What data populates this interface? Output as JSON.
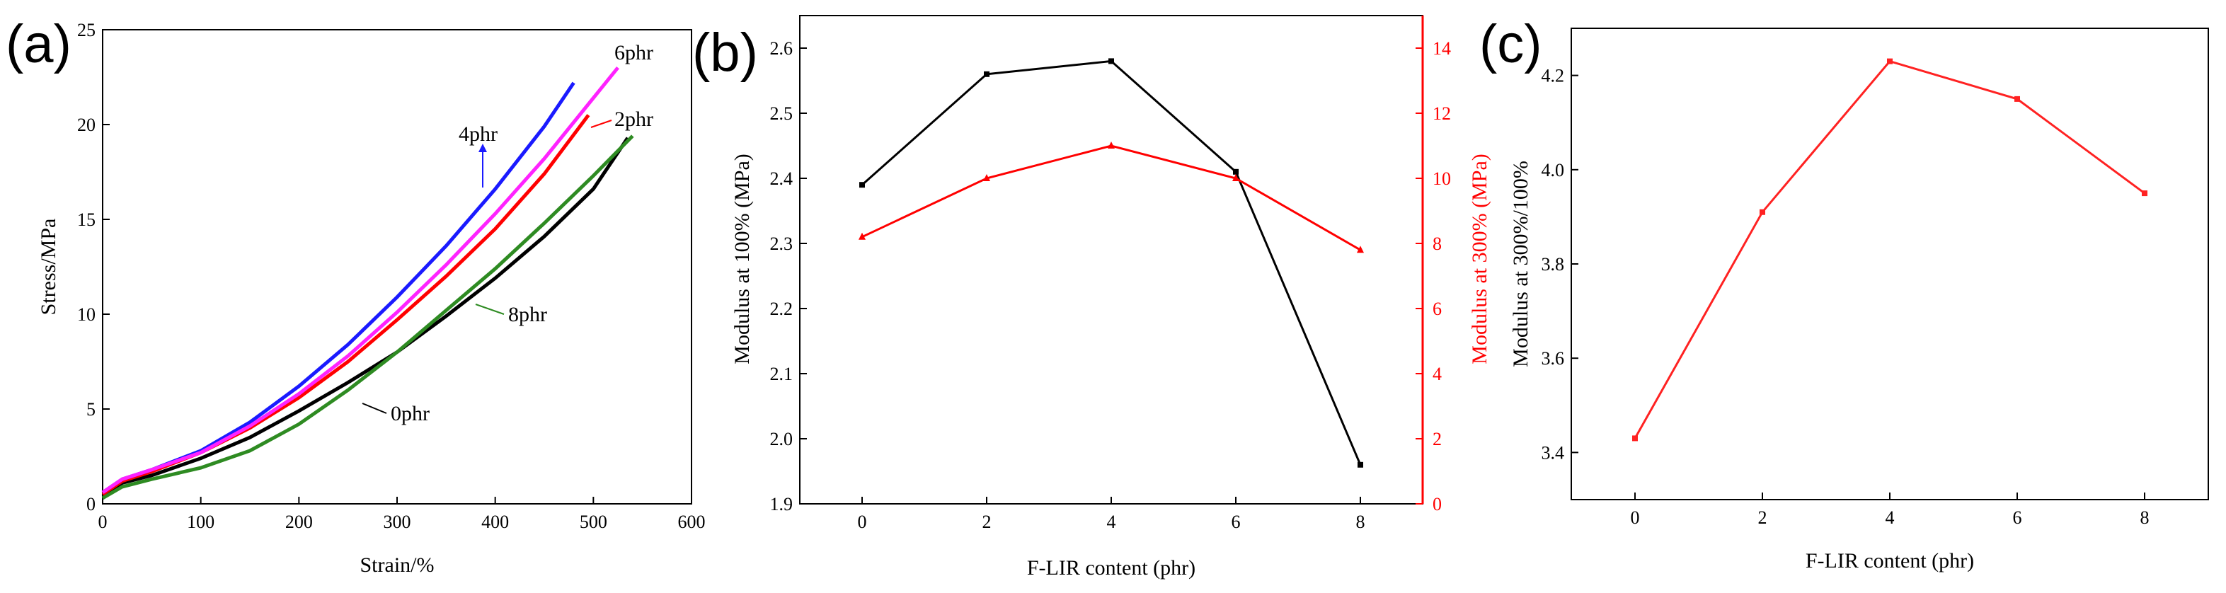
{
  "colors": {
    "black": "#000000",
    "red": "#ff0000",
    "green": "#2e8b22",
    "blue": "#1a1aff",
    "magenta": "#ff22ff",
    "red2": "#ff2222"
  },
  "chart_data": [
    {
      "panel": "(a)",
      "type": "line",
      "xlabel": "Strain/%",
      "ylabel": "Stress/MPa",
      "xlim": [
        0,
        600
      ],
      "ylim": [
        0,
        25
      ],
      "xticks": [
        "0",
        "100",
        "200",
        "300",
        "400",
        "500",
        "600"
      ],
      "yticks": [
        "0",
        "5",
        "10",
        "15",
        "20",
        "25"
      ],
      "series": [
        {
          "name": "0phr",
          "color": "black",
          "x": [
            0,
            20,
            50,
            100,
            150,
            200,
            250,
            300,
            350,
            400,
            450,
            500,
            535
          ],
          "y": [
            0.4,
            1.1,
            1.5,
            2.4,
            3.5,
            4.9,
            6.4,
            8.0,
            9.9,
            11.9,
            14.1,
            16.6,
            19.3
          ]
        },
        {
          "name": "2phr",
          "color": "red",
          "x": [
            0,
            20,
            50,
            100,
            150,
            200,
            250,
            300,
            350,
            400,
            450,
            495
          ],
          "y": [
            0.5,
            1.2,
            1.7,
            2.7,
            4.0,
            5.6,
            7.5,
            9.7,
            12.0,
            14.5,
            17.4,
            20.5
          ]
        },
        {
          "name": "4phr",
          "color": "blue",
          "x": [
            0,
            20,
            50,
            100,
            150,
            200,
            250,
            300,
            350,
            400,
            450,
            480
          ],
          "y": [
            0.6,
            1.3,
            1.8,
            2.8,
            4.3,
            6.2,
            8.4,
            10.9,
            13.6,
            16.6,
            19.9,
            22.2
          ]
        },
        {
          "name": "6phr",
          "color": "magenta",
          "x": [
            0,
            20,
            50,
            100,
            150,
            200,
            250,
            300,
            350,
            400,
            450,
            500,
            525
          ],
          "y": [
            0.6,
            1.3,
            1.8,
            2.7,
            4.1,
            5.8,
            7.8,
            10.1,
            12.6,
            15.3,
            18.2,
            21.4,
            23.0
          ]
        },
        {
          "name": "8phr",
          "color": "green",
          "x": [
            0,
            20,
            50,
            100,
            150,
            200,
            250,
            300,
            350,
            400,
            450,
            500,
            540
          ],
          "y": [
            0.3,
            0.9,
            1.3,
            1.9,
            2.8,
            4.2,
            6.0,
            8.0,
            10.2,
            12.4,
            14.8,
            17.3,
            19.4
          ]
        }
      ],
      "annotations": [
        "4phr",
        "6phr",
        "2phr",
        "8phr",
        "0phr"
      ]
    },
    {
      "panel": "(b)",
      "type": "line",
      "xlabel": "F-LIR content (phr)",
      "ylabel": "Modulus at 100% (MPa)",
      "ylabel_right": "Modulus at 300% (MPa)",
      "xlim": [
        -1,
        9
      ],
      "ylim": [
        1.9,
        2.65
      ],
      "ylim_right": [
        0,
        15
      ],
      "xticks": [
        "0",
        "2",
        "4",
        "6",
        "8"
      ],
      "yticks": [
        "1.9",
        "2.0",
        "2.1",
        "2.2",
        "2.3",
        "2.4",
        "2.5",
        "2.6"
      ],
      "yticks_right": [
        "0",
        "2",
        "4",
        "6",
        "8",
        "10",
        "12",
        "14"
      ],
      "series": [
        {
          "name": "",
          "axis": "left",
          "color": "black",
          "x": [
            0,
            2,
            4,
            6,
            8
          ],
          "y": [
            2.39,
            2.56,
            2.58,
            2.41,
            1.96
          ]
        },
        {
          "name": "",
          "axis": "right",
          "color": "red",
          "x": [
            0,
            2,
            4,
            6,
            8
          ],
          "y": [
            8.2,
            10.0,
            11.0,
            10.0,
            7.8
          ]
        }
      ]
    },
    {
      "panel": "(c)",
      "type": "line",
      "xlabel": "F-LIR content (phr)",
      "ylabel": "Modulus at 300%/100%",
      "xlim": [
        -1,
        9
      ],
      "ylim": [
        3.3,
        4.3
      ],
      "xticks": [
        "0",
        "2",
        "4",
        "6",
        "8"
      ],
      "yticks": [
        "3.4",
        "3.6",
        "3.8",
        "4.0",
        "4.2"
      ],
      "series": [
        {
          "name": "",
          "color": "red2",
          "x": [
            0,
            2,
            4,
            6,
            8
          ],
          "y": [
            3.43,
            3.91,
            4.23,
            4.15,
            3.95
          ]
        }
      ]
    }
  ]
}
